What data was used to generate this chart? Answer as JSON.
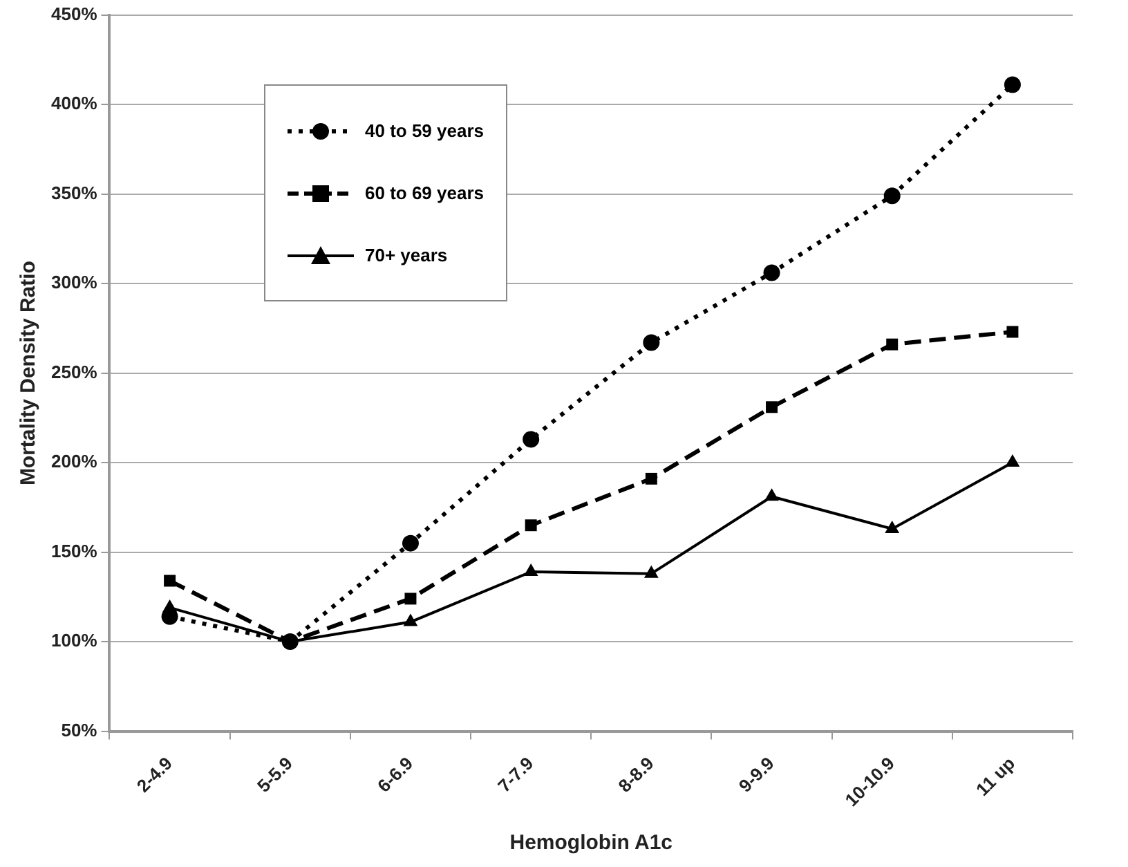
{
  "chart_data": {
    "type": "line",
    "xlabel": "Hemoglobin A1c",
    "ylabel": "Mortality Density Ratio",
    "categories": [
      "2-4.9",
      "5-5.9",
      "6-6.9",
      "7-7.9",
      "8-8.9",
      "9-9.9",
      "10-10.9",
      "11 up"
    ],
    "series": [
      {
        "name": "40 to 59 years",
        "color": "#000000",
        "marker": "circle",
        "line_style": "dotted",
        "values": [
          114,
          100,
          155,
          213,
          267,
          306,
          349,
          411
        ]
      },
      {
        "name": "60 to 69 years",
        "color": "#000000",
        "marker": "square",
        "line_style": "dashed",
        "values": [
          134,
          100,
          124,
          165,
          191,
          231,
          266,
          273
        ]
      },
      {
        "name": "70+ years",
        "color": "#000000",
        "marker": "triangle",
        "line_style": "solid",
        "values": [
          119,
          100,
          111,
          139,
          138,
          181,
          163,
          200
        ]
      }
    ],
    "ylim": [
      50,
      450
    ],
    "yticks": [
      {
        "value": 50,
        "label": "50%"
      },
      {
        "value": 100,
        "label": "100%"
      },
      {
        "value": 150,
        "label": "150%"
      },
      {
        "value": 200,
        "label": "200%"
      },
      {
        "value": 250,
        "label": "250%"
      },
      {
        "value": 300,
        "label": "300%"
      },
      {
        "value": 350,
        "label": "350%"
      },
      {
        "value": 400,
        "label": "400%"
      },
      {
        "value": 450,
        "label": "450%"
      }
    ],
    "grid": "y",
    "legend": "top left"
  }
}
